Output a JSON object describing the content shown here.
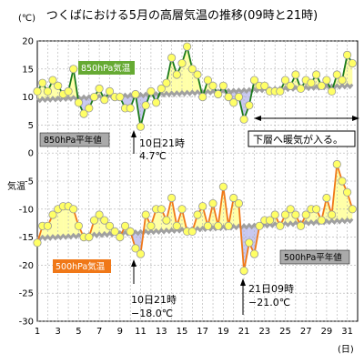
{
  "chart_data": {
    "type": "line",
    "title": "つくばにおける5月の高層気温の推移(09時と21時)",
    "y_unit_label": "(℃)",
    "ylabel": "気温",
    "x_unit_label": "(日)",
    "xlim": [
      1,
      32
    ],
    "ylim": [
      -30,
      20
    ],
    "y_ticks": [
      20,
      15,
      10,
      5,
      0,
      -5,
      -10,
      -15,
      -20,
      -25,
      -30
    ],
    "x_ticks": [
      1,
      3,
      5,
      7,
      9,
      11,
      13,
      15,
      17,
      19,
      21,
      23,
      25,
      27,
      29,
      31
    ],
    "grid": true,
    "series": [
      {
        "name": "850hPa気温",
        "color": "#1a7a1a",
        "marker_fill": "#ffff66",
        "fill_above": "#ffffa8",
        "fill_below": "#c8c8f0",
        "x": [
          1,
          1.5,
          2,
          2.5,
          3,
          3.5,
          4,
          4.5,
          5,
          5.5,
          6,
          6.5,
          7,
          7.5,
          8,
          8.5,
          9,
          9.5,
          10,
          10.5,
          11,
          11.5,
          12,
          12.5,
          13,
          13.5,
          14,
          14.5,
          15,
          15.5,
          16,
          16.5,
          17,
          17.5,
          18,
          18.5,
          19,
          19.5,
          20,
          20.5,
          21,
          21.5,
          22,
          22.5,
          23,
          23.5,
          24,
          24.5,
          25,
          25.5,
          26,
          26.5,
          27,
          27.5,
          28,
          28.5,
          29,
          29.5,
          30,
          30.5,
          31,
          31.5
        ],
        "values": [
          11,
          12.5,
          11,
          13,
          12,
          10.5,
          11,
          15,
          9,
          7,
          8,
          10,
          11.5,
          9.5,
          11,
          10,
          10,
          8,
          8,
          10.5,
          4.7,
          8.5,
          11,
          9,
          11.5,
          12.5,
          17,
          14,
          16,
          19,
          15,
          14,
          10,
          13,
          12,
          10.5,
          12,
          10,
          9,
          10,
          6,
          8.5,
          13,
          12,
          12,
          11,
          11,
          11,
          13,
          12,
          14,
          11.5,
          13,
          12.5,
          14,
          12,
          13,
          11,
          14,
          13,
          17.5,
          16
        ]
      },
      {
        "name": "500hPa気温",
        "color": "#f07818",
        "marker_fill": "#ffff66",
        "fill_above": "#ffffa8",
        "fill_below": "#c8c8f0",
        "x": [
          1,
          1.5,
          2,
          2.5,
          3,
          3.5,
          4,
          4.5,
          5,
          5.5,
          6,
          6.5,
          7,
          7.5,
          8,
          8.5,
          9,
          9.5,
          10,
          10.5,
          11,
          11.5,
          12,
          12.5,
          13,
          13.5,
          14,
          14.5,
          15,
          15.5,
          16,
          16.5,
          17,
          17.5,
          18,
          18.5,
          19,
          19.5,
          20,
          20.5,
          21,
          21.5,
          22,
          22.5,
          23,
          23.5,
          24,
          24.5,
          25,
          25.5,
          26,
          26.5,
          27,
          27.5,
          28,
          28.5,
          29,
          29.5,
          30,
          30.5,
          31,
          31.5
        ],
        "values": [
          -16,
          -13,
          -13,
          -11,
          -10,
          -9.5,
          -9.5,
          -10,
          -13,
          -15,
          -15,
          -12,
          -11,
          -12,
          -13,
          -14,
          -15,
          -13,
          -14,
          -17,
          -18,
          -11,
          -13,
          -10,
          -10,
          -12,
          -8,
          -13,
          -10,
          -14,
          -14,
          -11,
          -9.5,
          -13,
          -9,
          -13,
          -6,
          -13,
          -8,
          -9,
          -21,
          -16,
          -18,
          -13,
          -12,
          -12,
          -11,
          -13,
          -11,
          -10,
          -11,
          -13,
          -11,
          -10,
          -10,
          -12,
          -8,
          -11,
          -2,
          -5,
          -7,
          -10
        ]
      },
      {
        "name": "850hPa平年値",
        "color": "#a0a0a0",
        "values_start": 9.5,
        "values_end": 12,
        "x": [
          1,
          31.5
        ]
      },
      {
        "name": "500hPa平年値",
        "color": "#a0a0a0",
        "values_start": -15.2,
        "values_end": -12,
        "x": [
          1,
          31.5
        ]
      }
    ],
    "annotations": [
      {
        "text_lines": [
          "10日21時",
          "4.7℃"
        ]
      },
      {
        "text_lines": [
          "下層へ暖気が入る。"
        ]
      },
      {
        "text_lines": [
          "10日21時",
          "−18.0℃"
        ]
      },
      {
        "text_lines": [
          "21日09時",
          "−21.0℃"
        ]
      }
    ]
  }
}
